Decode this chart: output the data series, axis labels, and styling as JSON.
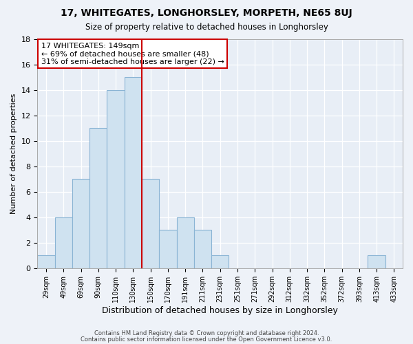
{
  "title": "17, WHITEGATES, LONGHORSLEY, MORPETH, NE65 8UJ",
  "subtitle": "Size of property relative to detached houses in Longhorsley",
  "xlabel": "Distribution of detached houses by size in Longhorsley",
  "ylabel": "Number of detached properties",
  "footer_line1": "Contains HM Land Registry data © Crown copyright and database right 2024.",
  "footer_line2": "Contains public sector information licensed under the Open Government Licence v3.0.",
  "bar_labels": [
    "29sqm",
    "49sqm",
    "69sqm",
    "90sqm",
    "110sqm",
    "130sqm",
    "150sqm",
    "170sqm",
    "191sqm",
    "211sqm",
    "231sqm",
    "251sqm",
    "271sqm",
    "292sqm",
    "312sqm",
    "332sqm",
    "352sqm",
    "372sqm",
    "393sqm",
    "413sqm",
    "433sqm"
  ],
  "bar_values": [
    1,
    4,
    7,
    11,
    14,
    15,
    7,
    3,
    4,
    3,
    1,
    0,
    0,
    0,
    0,
    0,
    0,
    0,
    0,
    1,
    0
  ],
  "bar_color": "#cfe2f0",
  "bar_edge_color": "#8ab4d4",
  "vline_x_index": 6,
  "vline_color": "#cc0000",
  "ylim": [
    0,
    18
  ],
  "yticks": [
    0,
    2,
    4,
    6,
    8,
    10,
    12,
    14,
    16,
    18
  ],
  "annotation_title": "17 WHITEGATES: 149sqm",
  "annotation_line2": "← 69% of detached houses are smaller (48)",
  "annotation_line3": "31% of semi-detached houses are larger (22) →",
  "annotation_box_edge": "#cc0000",
  "background_color": "#eef2f8",
  "plot_bg_color": "#e8eef6",
  "grid_color": "#ffffff"
}
